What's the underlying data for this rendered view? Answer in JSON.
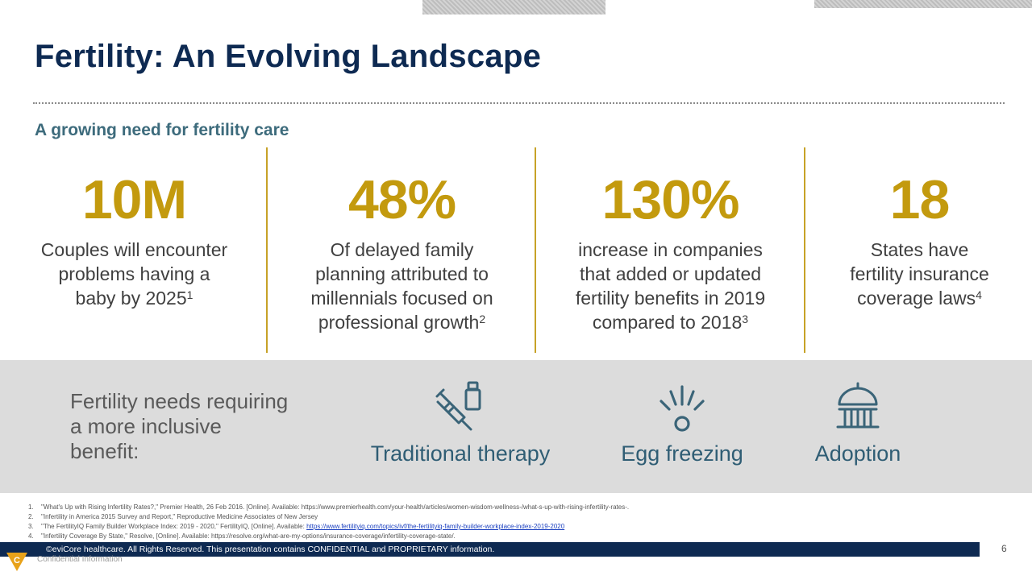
{
  "slide": {
    "title": "Fertility: An Evolving Landscape",
    "subtitle": "A growing need for fertility care",
    "page_number": "6"
  },
  "stats": [
    {
      "value": "10M",
      "lines": [
        "Couples will encounter",
        "problems having a",
        "baby by 2025"
      ],
      "sup": "1"
    },
    {
      "value": "48%",
      "lines": [
        "Of delayed family",
        "planning attributed to",
        "millennials focused on",
        "professional growth"
      ],
      "sup": "2"
    },
    {
      "value": "130%",
      "lines": [
        "increase in companies",
        "that added or updated",
        "fertility benefits in 2019",
        "compared to 2018"
      ],
      "sup": "3"
    },
    {
      "value": "18",
      "lines": [
        "States have",
        "fertility insurance",
        "coverage laws"
      ],
      "sup": "4"
    }
  ],
  "needs": {
    "heading_lines": [
      "Fertility needs requiring",
      "a more inclusive",
      "benefit:"
    ],
    "items": [
      {
        "label": "Traditional therapy",
        "icon": "syringe-vial-icon"
      },
      {
        "label": "Egg freezing",
        "icon": "egg-freezing-icon"
      },
      {
        "label": "Adoption",
        "icon": "building-dome-icon"
      }
    ]
  },
  "footnotes": [
    {
      "n": "1.",
      "text": "\"What's Up with Rising Infertility Rates?,\" Premier Health, 26 Feb 2016. [Online]. Available: https://www.premierhealth.com/your-health/articles/women-wisdom-wellness-/what-s-up-with-rising-infertility-rates-.",
      "link": ""
    },
    {
      "n": "2.",
      "text": "\"Infertility in America 2015 Survey and Report,\" Reproductive Medicine Associates of New Jersey",
      "link": ""
    },
    {
      "n": "3.",
      "text": "\"The FertilityIQ Family Builder Workplace Index: 2019 - 2020,\" FertilityIQ, [Online]. Available: ",
      "link": "https://www.fertilityiq.com/topics/ivf/the-fertilityiq-family-builder-workplace-index-2019-2020"
    },
    {
      "n": "4.",
      "text": "\"Infertility Coverage By State,\" Resolve, [Online]. Available: https://resolve.org/what-are-my-options/insurance-coverage/infertility-coverage-state/.",
      "link": ""
    }
  ],
  "footer": {
    "copyright": "©eviCore healthcare. All Rights Reserved. This presentation contains CONFIDENTIAL and PROPRIETARY information.",
    "confidential": "Confidential Information",
    "logo_letter": "C"
  },
  "colors": {
    "title": "#0e2a52",
    "accent_gold": "#c39a0e",
    "teal": "#3d6b7c",
    "footer_bar": "#0e2a52",
    "band_gray": "#dcdcdc"
  }
}
